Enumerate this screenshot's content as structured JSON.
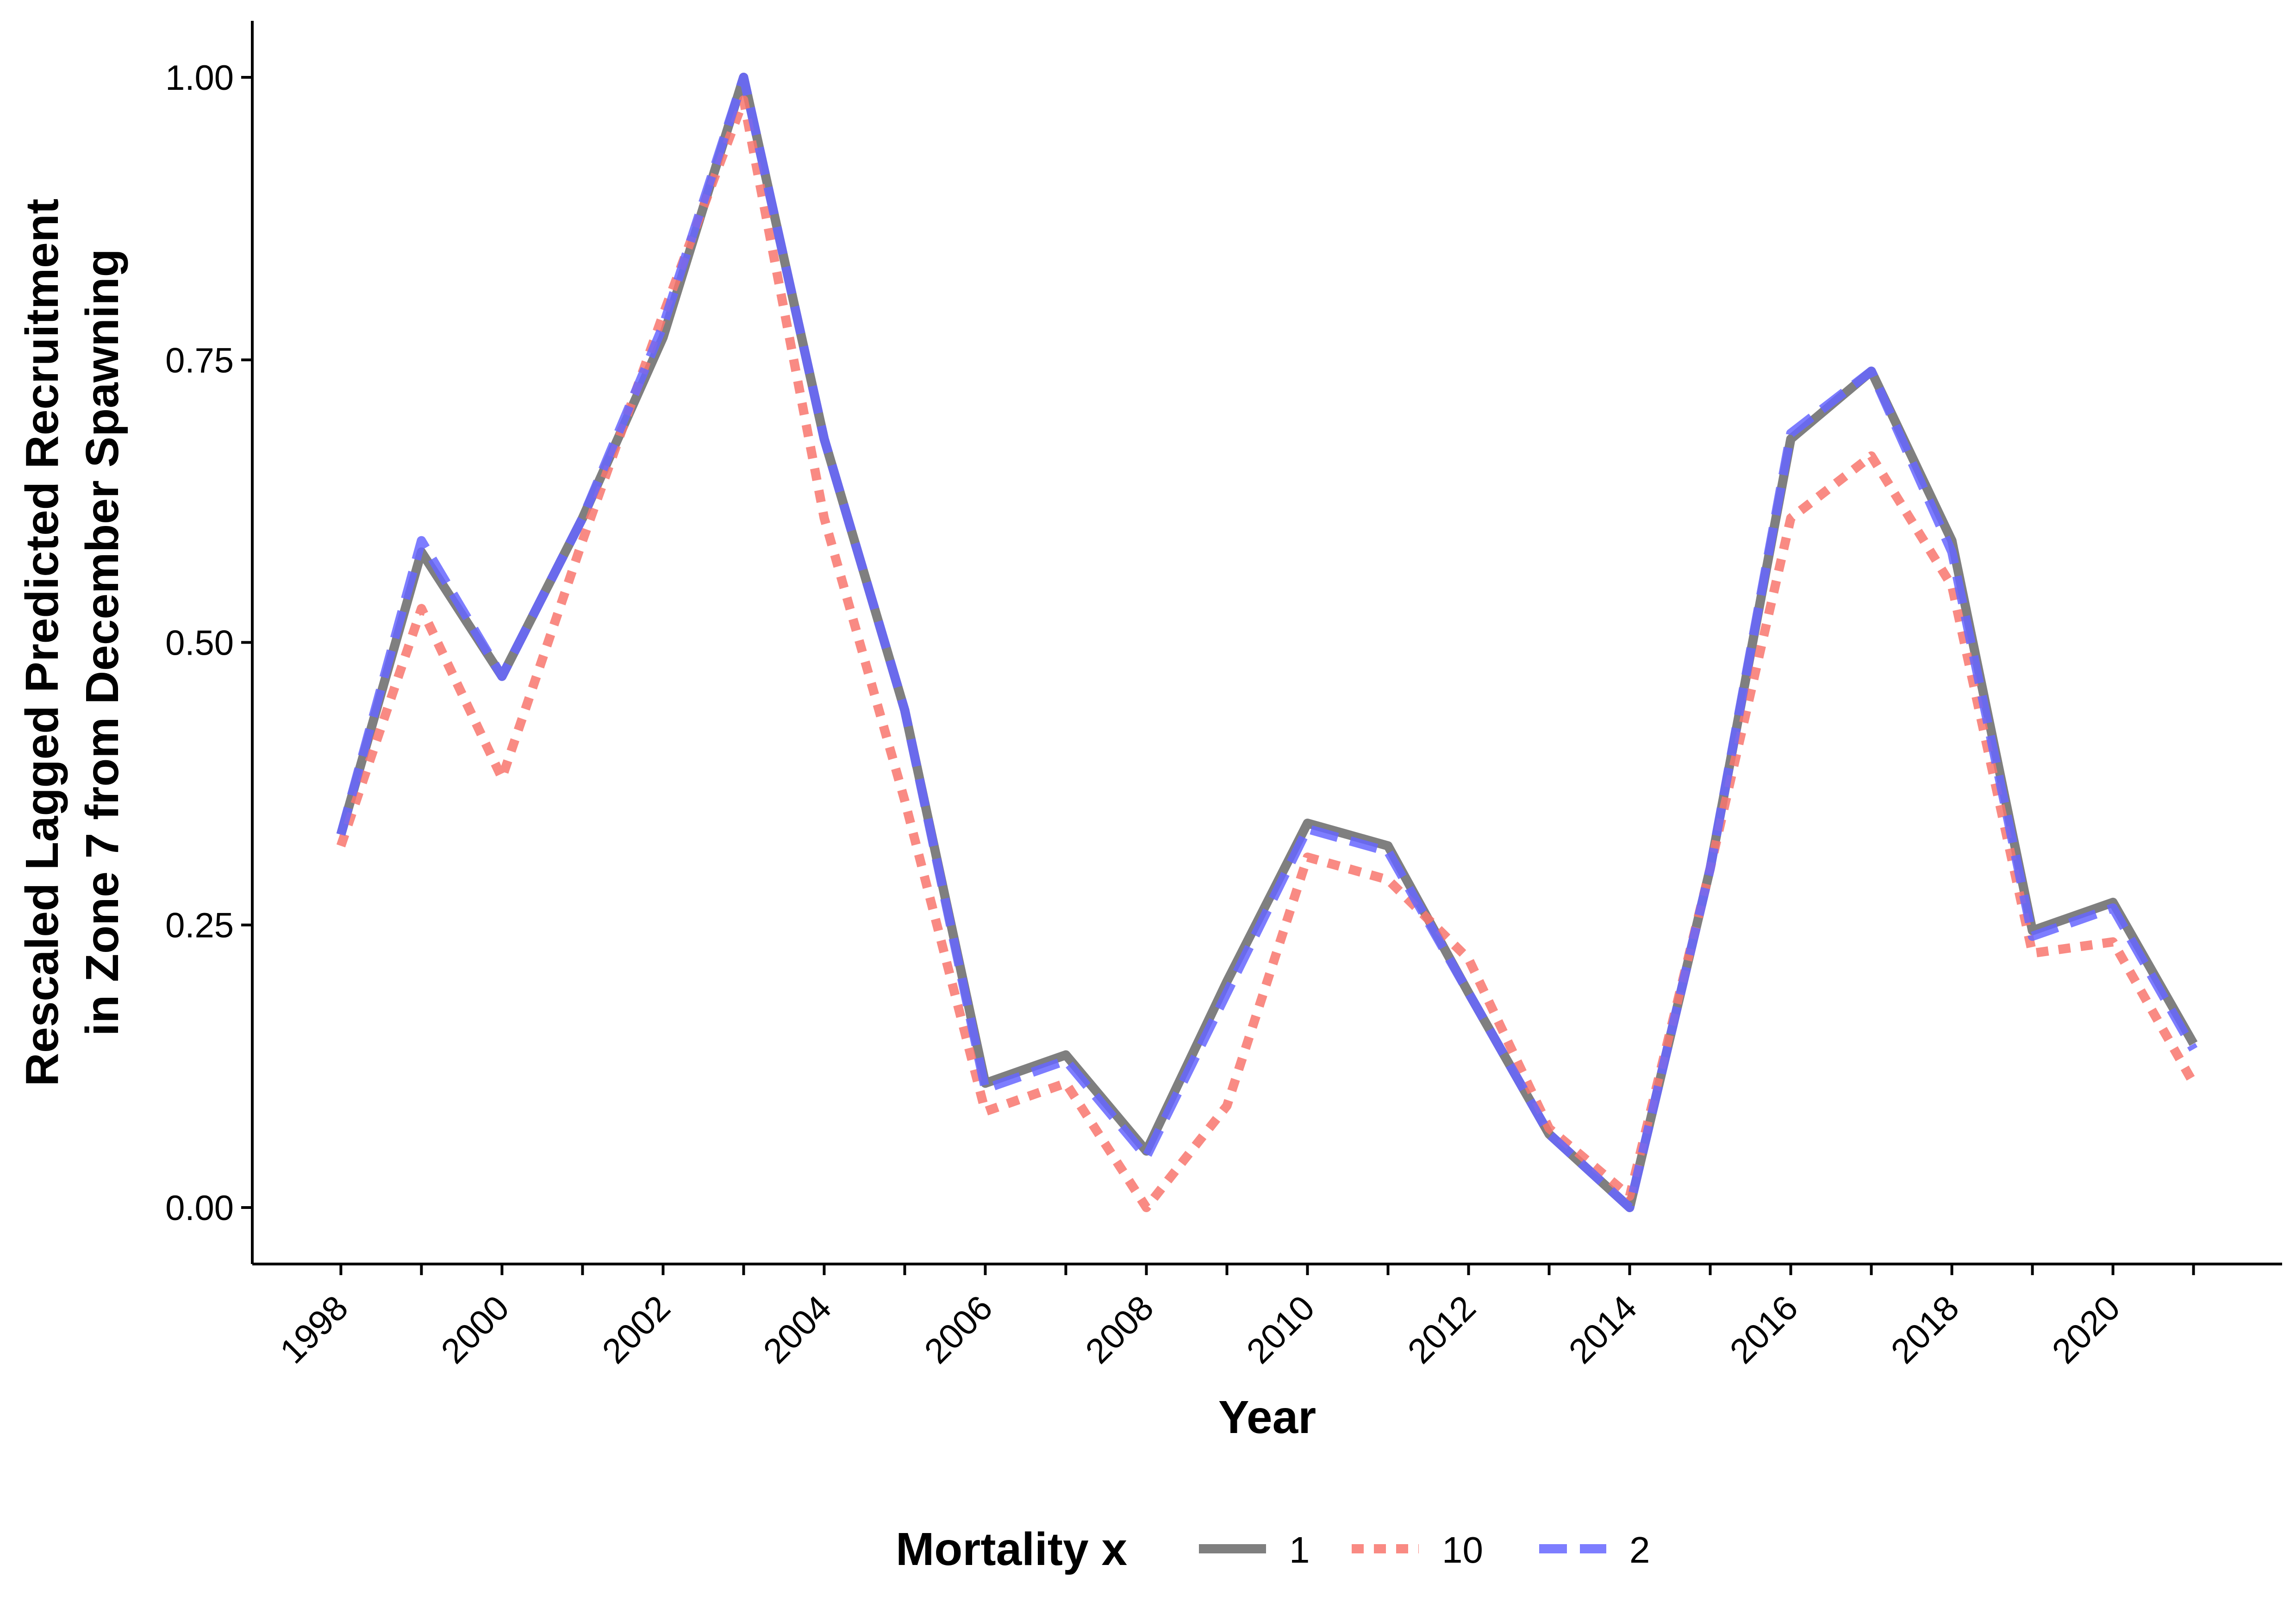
{
  "chart_data": {
    "type": "line",
    "xlabel": "Year",
    "ylabel_lines": [
      "Rescaled Lagged Predicted Recruitment",
      "in Zone 7 from December Spawning"
    ],
    "x": [
      1998,
      1999,
      2000,
      2001,
      2002,
      2003,
      2004,
      2005,
      2006,
      2007,
      2008,
      2009,
      2010,
      2011,
      2012,
      2013,
      2014,
      2015,
      2016,
      2017,
      2018,
      2019,
      2020,
      2021
    ],
    "x_ticks": [
      "1998",
      "2000",
      "2002",
      "2004",
      "2006",
      "2008",
      "2010",
      "2012",
      "2014",
      "2016",
      "2018",
      "2020"
    ],
    "xlim": [
      1996.9,
      2022.1
    ],
    "y_ticks": [
      "0.00",
      "0.25",
      "0.50",
      "0.75",
      "1.00"
    ],
    "ylim": [
      -0.05,
      1.05
    ],
    "grid": false,
    "legend": {
      "title": "Mortality x",
      "position": "bottom"
    },
    "series": [
      {
        "name": "1",
        "color": "#7f7f7f",
        "dash": "solid",
        "values": [
          0.33,
          0.58,
          0.47,
          0.61,
          0.77,
          1.0,
          0.68,
          0.44,
          0.11,
          0.135,
          0.05,
          0.2,
          0.34,
          0.32,
          0.19,
          0.065,
          0.0,
          0.3,
          0.68,
          0.74,
          0.59,
          0.245,
          0.27,
          0.145
        ]
      },
      {
        "name": "10",
        "color": "#f8766d",
        "dash": "dotted",
        "values": [
          0.32,
          0.53,
          0.38,
          0.59,
          0.79,
          0.98,
          0.61,
          0.36,
          0.085,
          0.11,
          0.0,
          0.09,
          0.31,
          0.29,
          0.22,
          0.07,
          0.01,
          0.3,
          0.61,
          0.665,
          0.55,
          0.225,
          0.235,
          0.11
        ]
      },
      {
        "name": "2",
        "color": "#6666ff",
        "dash": "dashed",
        "values": [
          0.33,
          0.59,
          0.47,
          0.61,
          0.78,
          1.0,
          0.68,
          0.44,
          0.105,
          0.13,
          0.045,
          0.19,
          0.335,
          0.315,
          0.19,
          0.065,
          0.0,
          0.3,
          0.685,
          0.74,
          0.58,
          0.24,
          0.265,
          0.14
        ]
      }
    ]
  }
}
